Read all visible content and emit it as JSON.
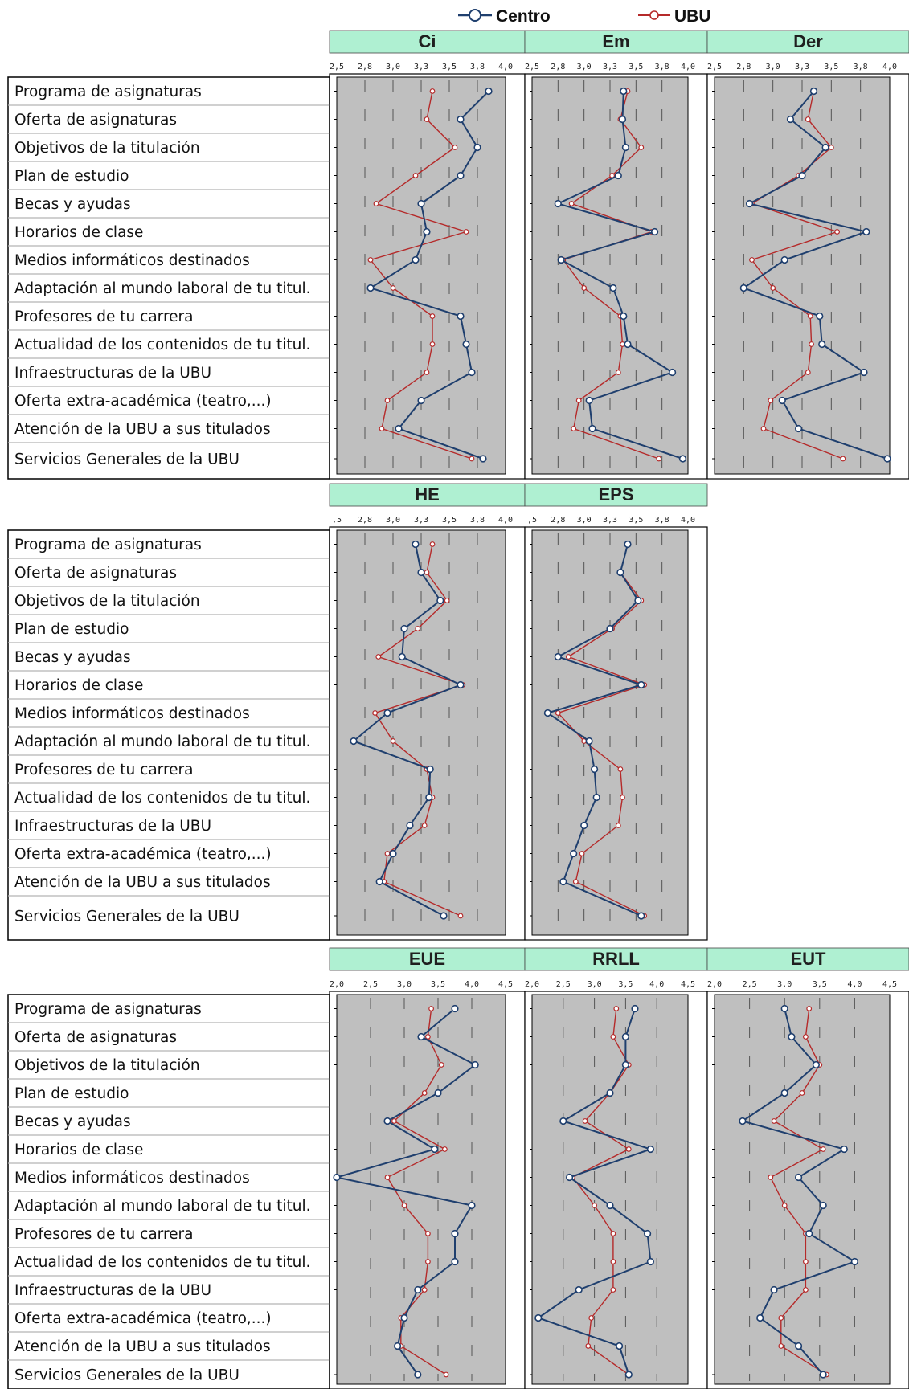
{
  "colors": {
    "centro": "#1f3f6e",
    "ubu": "#b52a2a",
    "header_bg": "#aff0d2",
    "plot_bg": "#bfbfbf"
  },
  "legend": [
    {
      "name": "Centro",
      "color": "#1f3f6e"
    },
    {
      "name": "UBU",
      "color": "#b52a2a"
    }
  ],
  "row_labels": [
    "Programa de asignaturas",
    "Oferta de asignaturas",
    "Objetivos de la titulación",
    "Plan de estudio",
    "Becas y ayudas",
    "Horarios de clase",
    "Medios informáticos destinados",
    "Adaptación al mundo laboral de tu titul.",
    "Profesores de tu carrera",
    "Actualidad de los contenidos de tu titul.",
    "Infraestructuras de la UBU",
    "Oferta extra-académica (teatro,...)",
    "Atención de la UBU a sus titulados",
    "Servicios Generales de la UBU"
  ],
  "chart_data": [
    {
      "type": "line",
      "title": "Ci",
      "tick_labels": [
        "2,5",
        "2,8",
        "3,0",
        "3,3",
        "3,5",
        "3,8",
        "4,0"
      ],
      "xlim": [
        2.5,
        4.0
      ],
      "series": [
        {
          "name": "Centro",
          "values": [
            3.85,
            3.6,
            3.75,
            3.6,
            3.25,
            3.3,
            3.2,
            2.8,
            3.6,
            3.65,
            3.7,
            3.25,
            3.05,
            3.8
          ]
        },
        {
          "name": "UBU",
          "values": [
            3.35,
            3.3,
            3.55,
            3.2,
            2.85,
            3.65,
            2.8,
            3.0,
            3.35,
            3.35,
            3.3,
            2.95,
            2.9,
            3.7
          ]
        }
      ]
    },
    {
      "type": "line",
      "title": "Em",
      "tick_labels": [
        "2,5",
        "2,8",
        "3,0",
        "3,3",
        "3,5",
        "3,8",
        "4,0"
      ],
      "xlim": [
        2.5,
        4.0
      ],
      "series": [
        {
          "name": "Centro",
          "values": [
            3.38,
            3.37,
            3.4,
            3.33,
            2.75,
            3.68,
            2.78,
            3.28,
            3.38,
            3.42,
            3.85,
            3.05,
            3.08,
            3.95
          ]
        },
        {
          "name": "UBU",
          "values": [
            3.42,
            3.35,
            3.55,
            3.27,
            2.88,
            3.65,
            2.8,
            3.0,
            3.35,
            3.37,
            3.33,
            2.95,
            2.9,
            3.72
          ]
        }
      ]
    },
    {
      "type": "line",
      "title": "Der",
      "tick_labels": [
        "2,5",
        "2,8",
        "3,0",
        "3,3",
        "3,5",
        "3,8",
        "4,0"
      ],
      "xlim": [
        2.5,
        4.0
      ],
      "series": [
        {
          "name": "Centro",
          "values": [
            3.35,
            3.15,
            3.45,
            3.25,
            2.8,
            3.8,
            3.1,
            2.75,
            3.4,
            3.42,
            3.78,
            3.08,
            3.22,
            3.98
          ]
        },
        {
          "name": "UBU",
          "values": [
            3.35,
            3.3,
            3.5,
            3.22,
            2.82,
            3.55,
            2.82,
            3.0,
            3.32,
            3.33,
            3.3,
            2.98,
            2.92,
            3.6
          ]
        }
      ]
    },
    {
      "type": "line",
      "title": "HE",
      "tick_labels": [
        ",5",
        "2,8",
        "3,0",
        "3,3",
        "3,5",
        "3,8",
        "4,0"
      ],
      "xlim": [
        2.5,
        4.0
      ],
      "series": [
        {
          "name": "Centro",
          "values": [
            3.2,
            3.25,
            3.42,
            3.1,
            3.08,
            3.6,
            2.95,
            2.65,
            3.33,
            3.32,
            3.15,
            3.0,
            2.88,
            3.45
          ]
        },
        {
          "name": "UBU",
          "values": [
            3.35,
            3.3,
            3.48,
            3.22,
            2.87,
            3.62,
            2.84,
            3.0,
            3.3,
            3.35,
            3.28,
            2.95,
            2.92,
            3.6
          ]
        }
      ]
    },
    {
      "type": "line",
      "title": "EPS",
      "tick_labels": [
        ",5",
        "2,8",
        "3,0",
        "3,3",
        "3,5",
        "3,8",
        "4,0"
      ],
      "xlim": [
        2.5,
        4.0
      ],
      "series": [
        {
          "name": "Centro",
          "values": [
            3.42,
            3.35,
            3.52,
            3.25,
            2.75,
            3.55,
            2.65,
            3.05,
            3.1,
            3.12,
            3.0,
            2.9,
            2.8,
            3.55
          ]
        },
        {
          "name": "UBU",
          "values": [
            3.42,
            3.35,
            3.55,
            3.27,
            2.85,
            3.58,
            2.75,
            3.0,
            3.35,
            3.37,
            3.33,
            2.98,
            2.92,
            3.58
          ]
        }
      ]
    },
    {
      "type": "line",
      "title": "EUE",
      "tick_labels": [
        "2,0",
        "2,5",
        "3,0",
        "3,5",
        "4,0",
        "4,5"
      ],
      "xlim": [
        2.0,
        4.5
      ],
      "series": [
        {
          "name": "Centro",
          "values": [
            3.75,
            3.25,
            4.05,
            3.5,
            2.75,
            3.45,
            2.0,
            4.0,
            3.75,
            3.75,
            3.2,
            3.0,
            2.9,
            3.2
          ]
        },
        {
          "name": "UBU",
          "values": [
            3.4,
            3.35,
            3.55,
            3.3,
            2.85,
            3.6,
            2.75,
            3.0,
            3.35,
            3.35,
            3.3,
            2.95,
            2.95,
            3.62
          ]
        }
      ]
    },
    {
      "type": "line",
      "title": "RRLL",
      "tick_labels": [
        "2,0",
        "2,5",
        "3,0",
        "3,5",
        "4,0",
        "4,5"
      ],
      "xlim": [
        2.0,
        4.5
      ],
      "series": [
        {
          "name": "Centro",
          "values": [
            3.65,
            3.5,
            3.5,
            3.25,
            2.5,
            3.9,
            2.6,
            3.25,
            3.85,
            3.9,
            2.75,
            2.1,
            3.4,
            3.55
          ]
        },
        {
          "name": "UBU",
          "values": [
            3.35,
            3.3,
            3.55,
            3.25,
            2.85,
            3.55,
            2.65,
            3.0,
            3.3,
            3.3,
            3.3,
            2.95,
            2.9,
            3.55
          ]
        }
      ]
    },
    {
      "type": "line",
      "title": "EUT",
      "tick_labels": [
        "2,0",
        "2,5",
        "3,0",
        "3,5",
        "4,0",
        "4,5"
      ],
      "xlim": [
        2.0,
        4.5
      ],
      "series": [
        {
          "name": "Centro",
          "values": [
            3.0,
            3.1,
            3.45,
            3.0,
            2.4,
            3.85,
            3.2,
            3.55,
            3.35,
            4.0,
            2.85,
            2.65,
            3.2,
            3.55
          ]
        },
        {
          "name": "UBU",
          "values": [
            3.35,
            3.3,
            3.5,
            3.25,
            2.85,
            3.55,
            2.8,
            3.0,
            3.3,
            3.3,
            3.3,
            2.95,
            2.95,
            3.6
          ]
        }
      ]
    }
  ]
}
